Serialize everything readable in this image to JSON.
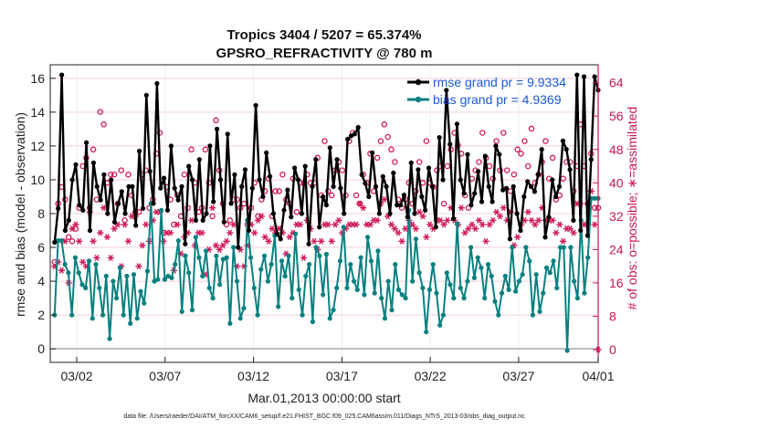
{
  "chart_data": {
    "type": "line",
    "title": "Tropics 3404 / 5207 = 65.374%",
    "subtitle": "GPSRO_REFRACTIVITY @ 780 m",
    "xlabel": "Mar.01,2013 00:00:00 start",
    "ylabel": "rmse and bias (model - observation)",
    "y2label": "# of obs: o=possible; ∗=assimilated",
    "footnote": "data file: /Users/raeder/DAI/ATM_forcXX/CAM6_setup/f.e21.FHIST_BGC.f09_025.CAM6assim.011/Diags_NTrS_2013-03/obs_diag_output.nc",
    "xlim": [
      0,
      31
    ],
    "ylim": [
      -0.8,
      16.8
    ],
    "y2lim": [
      -3.05,
      68.3
    ],
    "x_tick_values": [
      1.5,
      6.5,
      11.5,
      16.5,
      21.5,
      26.5,
      31
    ],
    "x_tick_labels": [
      "03/02",
      "03/07",
      "03/12",
      "03/17",
      "03/22",
      "03/27",
      "04/01"
    ],
    "y_ticks": [
      0,
      2,
      4,
      6,
      8,
      10,
      12,
      14,
      16
    ],
    "y2_ticks": [
      0,
      8,
      16,
      24,
      32,
      40,
      48,
      56,
      64
    ],
    "grid": true,
    "legend_position": "top-right",
    "series": [
      {
        "name": "rmse grand pr = 9.9334",
        "color": "#000000",
        "values": [
          6.3,
          8.3,
          16.2,
          7.0,
          7.6,
          10.0,
          10.9,
          8.5,
          8.2,
          12.2,
          7.0,
          11.0,
          9.6,
          8.8,
          10.3,
          8.0,
          10.0,
          7.5,
          8.6,
          9.3,
          8.0,
          9.6,
          9.6,
          7.3,
          11.7,
          8.3,
          15.0,
          10.5,
          8.6,
          15.7,
          9.5,
          10.1,
          8.2,
          12.0,
          9.5,
          8.8,
          9.6,
          6.2,
          10.8,
          10.0,
          7.6,
          11.2,
          7.6,
          8.0,
          12.0,
          8.7,
          13.0,
          10.0,
          7.5,
          12.7,
          8.6,
          10.3,
          6.0,
          9.6,
          10.6,
          7.0,
          9.5,
          14.4,
          10.0,
          9.0,
          11.6,
          10.2,
          8.0,
          6.8,
          6.5,
          8.2,
          9.4,
          7.8,
          10.7,
          10.0,
          8.0,
          10.8,
          6.2,
          9.6,
          11.2,
          7.2,
          9.0,
          8.5,
          11.9,
          9.6,
          11.2,
          9.5,
          8.0,
          12.4,
          12.6,
          12.7,
          13.1,
          10.3,
          9.8,
          9.0,
          11.6,
          9.6,
          8.0,
          10.2,
          9.6,
          8.0,
          10.4,
          8.5,
          8.5,
          9.1,
          7.8,
          11.0,
          8.0,
          10.6,
          9.0,
          8.2,
          10.7,
          9.6,
          7.2,
          12.5,
          10.0,
          15.3,
          12.1,
          7.7,
          13.3,
          10.0,
          9.2,
          11.5,
          8.5,
          9.2,
          10.5,
          8.7,
          11.4,
          9.6,
          8.7,
          12.0,
          11.5,
          9.4,
          9.5,
          6.5,
          9.6,
          8.0,
          7.0,
          9.0,
          9.9,
          9.6,
          9.3,
          10.3,
          11.8,
          6.6,
          7.8,
          10.0,
          9.0,
          9.6,
          12.3,
          11.8,
          10.6,
          7.6,
          16.2,
          7.0,
          16.1,
          6.7,
          11.2,
          16.1,
          15.3
        ]
      },
      {
        "name": "bias grand pr = 4.9369",
        "color": "#0a8080",
        "values": [
          2.0,
          6.4,
          6.4,
          5.0,
          4.5,
          2.0,
          5.4,
          4.5,
          3.8,
          3.6,
          5.2,
          1.8,
          5.0,
          3.6,
          2.0,
          4.3,
          0.6,
          4.0,
          3.0,
          4.8,
          2.0,
          4.3,
          1.5,
          4.4,
          1.8,
          3.4,
          2.7,
          4.6,
          8.6,
          4.0,
          4.1,
          8.2,
          4.1,
          4.3,
          4.2,
          5.0,
          6.4,
          2.2,
          5.5,
          4.5,
          2.3,
          6.6,
          5.4,
          4.3,
          5.8,
          3.6,
          3.0,
          5.5,
          3.8,
          5.3,
          5.4,
          1.5,
          6.0,
          4.0,
          1.8,
          2.4,
          7.6,
          5.4,
          3.6,
          2.0,
          4.7,
          5.5,
          4.0,
          5.0,
          6.7,
          2.5,
          5.2,
          4.3,
          5.5,
          3.0,
          6.8,
          3.5,
          2.0,
          4.3,
          5.0,
          1.6,
          6.0,
          5.5,
          3.2,
          5.6,
          1.8,
          2.3,
          3.6,
          5.2,
          7.2,
          3.6,
          5.0,
          4.0,
          3.5,
          5.4,
          3.2,
          6.6,
          5.2,
          3.3,
          5.8,
          3.0,
          1.8,
          4.0,
          2.3,
          5.0,
          3.5,
          3.2,
          3.0,
          8.2,
          4.0,
          6.5,
          4.5,
          3.6,
          1.0,
          3.5,
          5.0,
          3.3,
          1.4,
          2.0,
          4.5,
          3.8,
          3.0,
          7.4,
          3.6,
          3.0,
          4.0,
          6.0,
          4.2,
          5.4,
          4.8,
          3.0,
          5.0,
          4.3,
          2.8,
          2.0,
          3.3,
          4.3,
          3.5,
          6.0,
          3.4,
          4.0,
          4.4,
          6.0,
          5.2,
          2.0,
          4.4,
          2.2,
          3.3,
          4.8,
          4.5,
          5.2,
          3.6,
          6.0,
          6.0,
          -0.1,
          6.0,
          4.0,
          3.0,
          7.6,
          3.3,
          5.4,
          8.9,
          8.9,
          8.9
        ]
      }
    ],
    "count_series": [
      {
        "name": "possible",
        "marker": "o",
        "color": "#d0185a",
        "values": [
          21,
          35,
          39,
          36,
          27,
          26,
          29,
          34,
          44,
          46,
          34,
          48,
          36,
          57,
          54,
          40,
          42,
          42,
          35,
          43,
          31,
          42,
          37,
          33,
          33,
          42,
          43,
          34,
          36,
          47,
          52,
          28,
          39,
          36,
          30,
          37,
          32,
          42,
          34,
          48,
          40,
          33,
          34,
          48,
          40,
          32,
          55,
          43,
          35,
          30,
          31,
          36,
          36,
          34,
          35,
          30,
          34,
          40,
          32,
          36,
          38,
          41,
          32,
          38,
          38,
          42,
          36,
          35,
          41,
          33,
          40,
          40,
          42,
          40,
          40,
          46,
          37,
          50,
          38,
          37,
          43,
          45,
          43,
          37,
          50,
          52,
          37,
          35,
          42,
          40,
          47,
          38,
          46,
          50,
          54,
          51,
          48,
          45,
          36,
          34,
          36,
          40,
          35,
          38,
          45,
          40,
          50,
          40,
          39,
          43,
          44,
          35,
          44,
          48,
          52,
          49,
          47,
          37,
          34,
          41,
          43,
          45,
          52,
          46,
          44,
          41,
          50,
          43,
          52,
          43,
          38,
          42,
          48,
          47,
          50,
          44,
          53,
          40,
          42,
          45,
          50,
          41,
          46,
          36,
          37,
          41,
          45,
          45,
          38,
          44,
          54,
          44,
          35,
          47,
          34,
          34
        ]
      },
      {
        "name": "assimilated",
        "marker": "*",
        "color": "#d0185a",
        "values": [
          20,
          21,
          19,
          26,
          16,
          29,
          30,
          26,
          21,
          20,
          33,
          26,
          22,
          28,
          34,
          27,
          22,
          29,
          30,
          20,
          30,
          26,
          32,
          32,
          20,
          25,
          30,
          26,
          31,
          33,
          33,
          26,
          28,
          28,
          19,
          30,
          23,
          27,
          28,
          31,
          25,
          28,
          28,
          18,
          24,
          34,
          25,
          24,
          25,
          26,
          28,
          30,
          20,
          24,
          20,
          25,
          30,
          28,
          31,
          32,
          27,
          26,
          29,
          28,
          29,
          28,
          23,
          27,
          28,
          30,
          30,
          22,
          31,
          29,
          26,
          24,
          26,
          30,
          30,
          26,
          30,
          31,
          28,
          29,
          30,
          30,
          30,
          35,
          34,
          30,
          30,
          31,
          31,
          35,
          36,
          32,
          30,
          29,
          28,
          26,
          29,
          31,
          30,
          29,
          33,
          32,
          27,
          30,
          29,
          31,
          31,
          30,
          31,
          34,
          31,
          30,
          34,
          28,
          29,
          30,
          29,
          31,
          30,
          26,
          30,
          31,
          33,
          32,
          34,
          31,
          33,
          25,
          27,
          30,
          31,
          33,
          31,
          30,
          31,
          34,
          31,
          31,
          31,
          28,
          30,
          26,
          29,
          29,
          28,
          35,
          35,
          30,
          30,
          38,
          30,
          0
        ]
      }
    ]
  }
}
